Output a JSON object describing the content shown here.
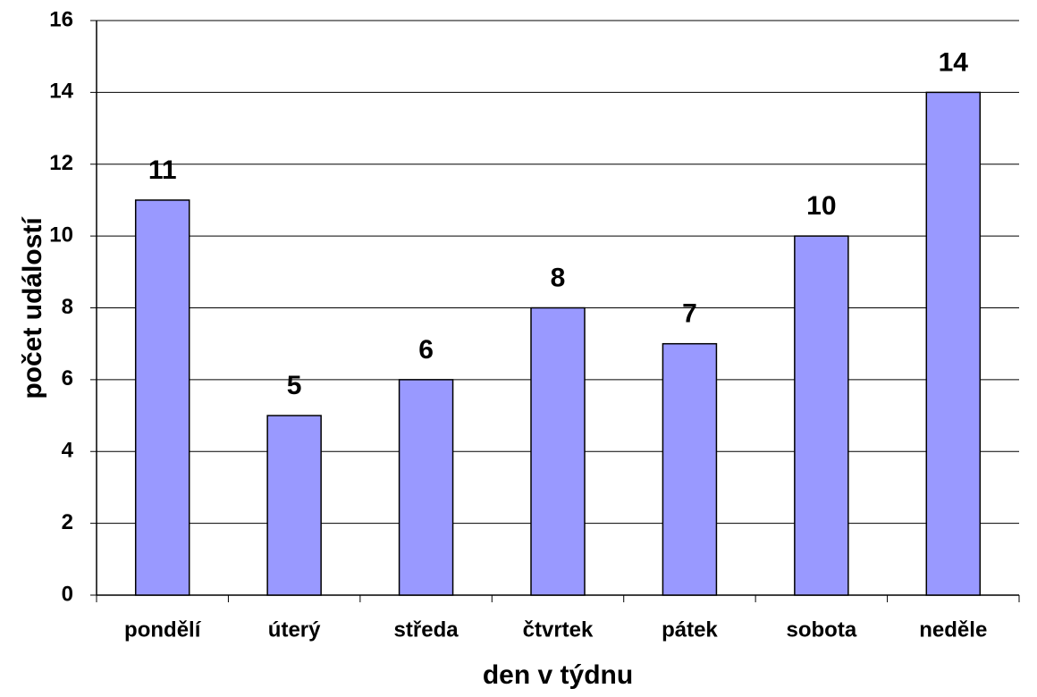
{
  "chart_data": {
    "type": "bar",
    "categories": [
      "pondělí",
      "úterý",
      "středa",
      "čtvrtek",
      "pátek",
      "sobota",
      "neděle"
    ],
    "values": [
      11,
      5,
      6,
      8,
      7,
      10,
      14
    ],
    "color": "#9999ff",
    "x_label": "den v týdnu",
    "y_label": "počet událostí",
    "ylim": [
      0,
      16
    ],
    "yticks": [
      0,
      2,
      4,
      6,
      8,
      10,
      12,
      14,
      16
    ],
    "grid": true
  }
}
